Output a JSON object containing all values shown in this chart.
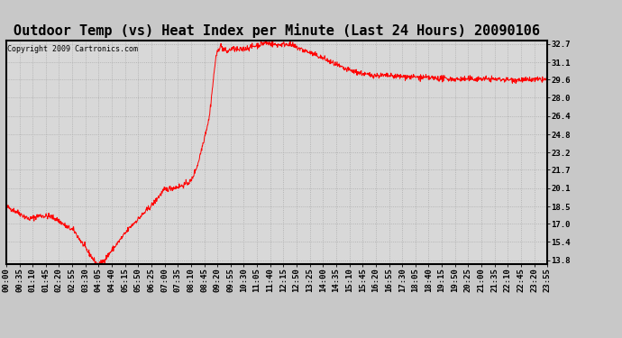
{
  "title": "Outdoor Temp (vs) Heat Index per Minute (Last 24 Hours) 20090106",
  "copyright_text": "Copyright 2009 Cartronics.com",
  "line_color": "#ff0000",
  "background_color": "#c8c8c8",
  "plot_bg_color": "#d8d8d8",
  "grid_color": "#aaaaaa",
  "y_ticks": [
    13.8,
    15.4,
    17.0,
    18.5,
    20.1,
    21.7,
    23.2,
    24.8,
    26.4,
    28.0,
    29.6,
    31.1,
    32.7
  ],
  "x_labels": [
    "00:00",
    "00:35",
    "01:10",
    "01:45",
    "02:20",
    "02:55",
    "03:30",
    "04:05",
    "04:40",
    "05:15",
    "05:50",
    "06:25",
    "07:00",
    "07:35",
    "08:10",
    "08:45",
    "09:20",
    "09:55",
    "10:30",
    "11:05",
    "11:40",
    "12:15",
    "12:50",
    "13:25",
    "14:00",
    "14:35",
    "15:10",
    "15:45",
    "16:20",
    "16:55",
    "17:30",
    "18:05",
    "18:40",
    "19:15",
    "19:50",
    "20:25",
    "21:00",
    "21:35",
    "22:10",
    "22:45",
    "23:20",
    "23:55"
  ],
  "title_fontsize": 11,
  "tick_fontsize": 6.5,
  "copyright_fontsize": 6,
  "y_min": 13.8,
  "y_max": 32.7,
  "noise_seed": 42,
  "noise_std": 0.12
}
